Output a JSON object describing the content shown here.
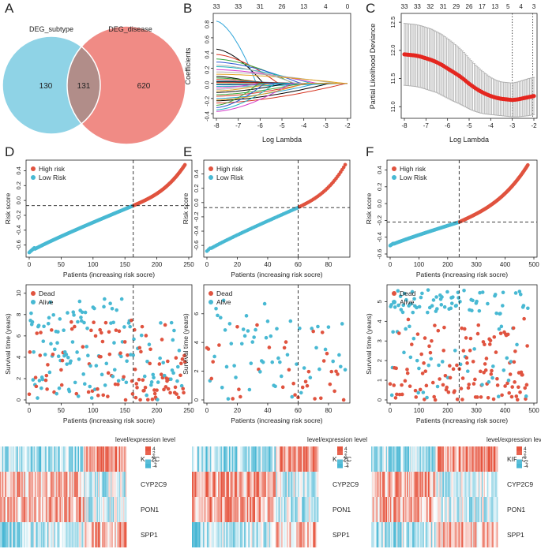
{
  "colors": {
    "high_risk": "#e0533f",
    "low_risk": "#48b9d3",
    "venn_left": "#8fd3e6",
    "venn_right": "#f08b85",
    "venn_overlap": "#b18d89",
    "likelihood_dot": "#e5261f",
    "heat_high": "#e6553f",
    "heat_low": "#49b7d4",
    "heat_mid": "#ffffff"
  },
  "panel_labels": [
    "A",
    "B",
    "C",
    "D",
    "E",
    "F"
  ],
  "venn": {
    "left_label": "DEG_subtype",
    "right_label": "DEG_disease",
    "left_only": "130",
    "overlap": "131",
    "right_only": "620"
  },
  "lasso_coef": {
    "ylabel": "Coefficients",
    "xlabel": "Log Lambda",
    "xticks": [
      "-8",
      "-7",
      "-6",
      "-5",
      "-4",
      "-3",
      "-2"
    ],
    "yticks": [
      "-0.4",
      "-0.2",
      "0.0",
      "0.2",
      "0.4",
      "0.6",
      "0.8"
    ],
    "top_ticks": [
      "33",
      "33",
      "31",
      "26",
      "13",
      "4",
      "0"
    ],
    "chart_data": {
      "type": "line",
      "title": "",
      "xlabel": "Log Lambda",
      "ylabel": "Coefficients",
      "xlim": [
        -8,
        -2
      ],
      "ylim": [
        -0.42,
        0.88
      ],
      "n_lines": 33,
      "start_values": [
        0.82,
        0.45,
        0.38,
        0.32,
        0.28,
        0.22,
        0.18,
        0.15,
        0.12,
        0.09,
        0.07,
        0.05,
        0.03,
        0.02,
        0.01,
        -0.01,
        -0.02,
        -0.04,
        -0.06,
        -0.08,
        -0.1,
        -0.12,
        -0.15,
        -0.17,
        -0.2,
        -0.23,
        -0.26,
        -0.29,
        -0.32,
        -0.35,
        -0.37,
        0.24,
        -0.22
      ]
    }
  },
  "lasso_cv": {
    "ylabel": "Partial Likelihood Deviance",
    "xlabel": "Log Lambda",
    "xticks": [
      "-8",
      "-7",
      "-6",
      "-5",
      "-4",
      "-3",
      "-2"
    ],
    "yticks": [
      "11.0",
      "11.5",
      "12.0",
      "12.5"
    ],
    "top_ticks": [
      "33",
      "33",
      "32",
      "31",
      "29",
      "26",
      "17",
      "13",
      "5",
      "4",
      "3"
    ],
    "chart_data": {
      "type": "scatter",
      "xlabel": "Log Lambda",
      "ylabel": "Partial Likelihood Deviance",
      "xlim": [
        -8,
        -2
      ],
      "ylim": [
        10.85,
        12.6
      ],
      "log_lambda": [
        -8.0,
        -7.75,
        -7.5,
        -7.25,
        -7.0,
        -6.75,
        -6.5,
        -6.25,
        -6.0,
        -5.75,
        -5.5,
        -5.25,
        -5.0,
        -4.75,
        -4.5,
        -4.25,
        -4.0,
        -3.75,
        -3.5,
        -3.25,
        -3.0,
        -2.75,
        -2.5,
        -2.25,
        -2.0
      ],
      "deviance": [
        11.93,
        11.92,
        11.91,
        11.89,
        11.86,
        11.83,
        11.79,
        11.74,
        11.68,
        11.62,
        11.56,
        11.49,
        11.41,
        11.34,
        11.28,
        11.23,
        11.19,
        11.16,
        11.14,
        11.13,
        11.12,
        11.13,
        11.15,
        11.17,
        11.19
      ],
      "error": [
        0.55,
        0.55,
        0.55,
        0.55,
        0.55,
        0.55,
        0.54,
        0.54,
        0.53,
        0.52,
        0.5,
        0.48,
        0.45,
        0.42,
        0.39,
        0.36,
        0.33,
        0.31,
        0.3,
        0.3,
        0.3,
        0.31,
        0.32,
        0.33,
        0.33
      ],
      "vlines": [
        -3.0,
        -2.05
      ]
    }
  },
  "risk_panels": [
    {
      "legend_high": "High risk",
      "legend_low": "Low Risk",
      "ylabel": "Risk score",
      "xlabel": "Patients (increasing risk socre)",
      "xticks": [
        "0",
        "50",
        "100",
        "150",
        "200",
        "250"
      ],
      "yticks": [
        "-0.6",
        "-0.4",
        "-0.2",
        "0.0",
        "0.2",
        "0.4"
      ],
      "chart_data": {
        "type": "scatter",
        "n_patients": 245,
        "cutoff_index": 163,
        "cutoff_score": -0.07,
        "xlim": [
          0,
          250
        ],
        "ylim": [
          -0.72,
          0.5
        ],
        "score_min": -0.7,
        "score_max": 0.48
      }
    },
    {
      "legend_high": "High risk",
      "legend_low": "Low Risk",
      "ylabel": "Risk score",
      "xlabel": "Patients (increasing risk socre)",
      "xticks": [
        "0",
        "20",
        "40",
        "60",
        "80"
      ],
      "yticks": [
        "-0.6",
        "-0.4",
        "-0.2",
        "0.0",
        "0.2",
        "0.4"
      ],
      "chart_data": {
        "type": "scatter",
        "n_patients": 92,
        "cutoff_index": 60,
        "cutoff_score": -0.07,
        "xlim": [
          0,
          92
        ],
        "ylim": [
          -0.72,
          0.55
        ],
        "score_min": -0.68,
        "score_max": 0.53
      }
    },
    {
      "legend_high": "High risk",
      "legend_low": "Low Risk",
      "ylabel": "Risk score",
      "xlabel": "Patients (increasing risk socre)",
      "xticks": [
        "0",
        "100",
        "200",
        "300",
        "400",
        "500"
      ],
      "yticks": [
        "-0.6",
        "-0.4",
        "-0.2",
        "0.0",
        "0.2",
        "0.4"
      ],
      "chart_data": {
        "type": "scatter",
        "n_patients": 480,
        "cutoff_index": 240,
        "cutoff_score": -0.22,
        "xlim": [
          0,
          500
        ],
        "ylim": [
          -0.6,
          0.48
        ],
        "score_min": -0.5,
        "score_max": 0.46
      }
    }
  ],
  "survival_panels": [
    {
      "legend_dead": "Dead",
      "legend_alive": "Alive",
      "ylabel": "Survival time (years)",
      "xlabel": "Patients (increasing risk socre)",
      "xticks": [
        "0",
        "50",
        "100",
        "150",
        "200",
        "250"
      ],
      "yticks": [
        "0",
        "2",
        "4",
        "6",
        "8",
        "10"
      ],
      "chart_data": {
        "type": "scatter",
        "n_patients": 245,
        "cutoff_index": 163,
        "xlim": [
          0,
          250
        ],
        "ylim": [
          0,
          10.5
        ],
        "max_time": 10
      }
    },
    {
      "legend_dead": "Dead",
      "legend_alive": "Alive",
      "ylabel": "Survival time (years)",
      "xlabel": "Patients (increasing risk socre)",
      "xticks": [
        "0",
        "20",
        "40",
        "60",
        "80"
      ],
      "yticks": [
        "0",
        "2",
        "4",
        "6"
      ],
      "chart_data": {
        "type": "scatter",
        "n_patients": 92,
        "cutoff_index": 60,
        "xlim": [
          0,
          92
        ],
        "ylim": [
          0,
          7.8
        ],
        "max_time": 7.5
      }
    },
    {
      "legend_dead": "Dead",
      "legend_alive": "Alive",
      "ylabel": "Survival time (years)",
      "xlabel": "Patients (increasing risk socre)",
      "xticks": [
        "0",
        "100",
        "200",
        "300",
        "400",
        "500"
      ],
      "yticks": [
        "0",
        "1",
        "2",
        "3",
        "4",
        "5"
      ],
      "chart_data": {
        "type": "scatter",
        "n_patients": 480,
        "cutoff_index": 240,
        "xlim": [
          0,
          500
        ],
        "ylim": [
          0,
          5.7
        ],
        "max_time": 5.6
      }
    }
  ],
  "heatmaps": [
    {
      "legend_title": "level/expression level",
      "legend_ticks": [
        "4",
        "2",
        "0",
        "-2",
        "-4"
      ],
      "genes": [
        "KIF2C",
        "CYP2C9",
        "PON1",
        "SPP1"
      ],
      "chart_data": {
        "type": "heatmap",
        "rows": [
          "KIF2C",
          "CYP2C9",
          "PON1",
          "SPP1"
        ],
        "n_columns": 245,
        "cutoff_index": 163,
        "value_range": [
          -4,
          4
        ]
      }
    },
    {
      "legend_title": "level/expression level",
      "legend_ticks": [
        "4",
        "2",
        "0",
        "-2",
        "-4"
      ],
      "genes": [
        "KIF2C",
        "CYP2C9",
        "PON1",
        "SPP1"
      ],
      "chart_data": {
        "type": "heatmap",
        "rows": [
          "KIF2C",
          "CYP2C9",
          "PON1",
          "SPP1"
        ],
        "n_columns": 92,
        "cutoff_index": 60,
        "value_range": [
          -4,
          4
        ]
      }
    },
    {
      "legend_title": "level/expression level",
      "legend_ticks": [
        "4",
        "2",
        "0",
        "-2",
        "-4"
      ],
      "genes": [
        "KIF2C",
        "CYP2C9",
        "PON1",
        "SPP1"
      ],
      "chart_data": {
        "type": "heatmap",
        "rows": [
          "KIF2C",
          "CYP2C9",
          "PON1",
          "SPP1"
        ],
        "n_columns": 480,
        "cutoff_index": 240,
        "value_range": [
          -4,
          4
        ]
      }
    }
  ]
}
